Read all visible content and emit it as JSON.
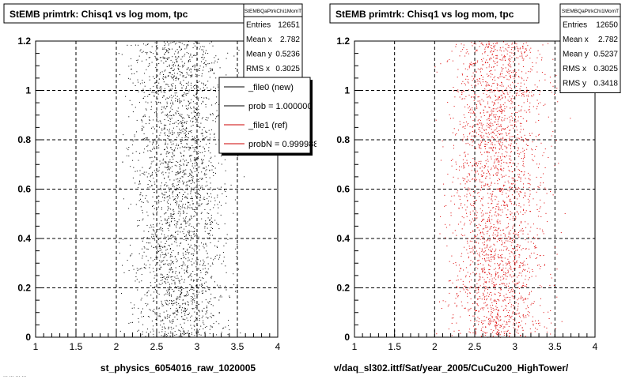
{
  "footer_fragment": "... ... ... ...",
  "chart_data": [
    {
      "type": "scatter",
      "title": "StEMB primtrk: Chisq1 vs log mom, tpc",
      "xlabel": "st_physics_6054016_raw_1020005",
      "ylabel": "",
      "xlim": [
        1,
        4
      ],
      "ylim": [
        0,
        1.2
      ],
      "x_ticks": [
        "1",
        "1.5",
        "2",
        "2.5",
        "3",
        "3.5",
        "4"
      ],
      "y_ticks": [
        "0",
        "0.2",
        "0.4",
        "0.6",
        "0.8",
        "1",
        "1.2"
      ],
      "grid": true,
      "marker_color": "#000000",
      "stats": {
        "name": "StEMBQaPtrkChi1MomT",
        "rows": [
          {
            "label": "Entries",
            "value": "12651"
          },
          {
            "label": "Mean x",
            "value": "2.782"
          },
          {
            "label": "Mean y",
            "value": "0.5236"
          },
          {
            "label": "RMS x",
            "value": "0.3025"
          }
        ]
      },
      "legend": {
        "placement": "top-right",
        "entries": [
          {
            "label": "_file0 (new)",
            "color": "#000000"
          },
          {
            "label": "prob = 1.000000",
            "color": "#000000"
          },
          {
            "label": "_file1 (ref)",
            "color": "#cc0000"
          },
          {
            "label": "probN = 0.999988",
            "color": "#cc0000"
          }
        ]
      },
      "distribution": {
        "entries": 12651,
        "x_mean": 2.782,
        "x_rms": 0.3025,
        "y_mean": 0.5236,
        "x_range": [
          2.0,
          3.75
        ],
        "y_range": [
          0,
          1.2
        ]
      }
    },
    {
      "type": "scatter",
      "title": "StEMB primtrk: Chisq1 vs log mom, tpc",
      "xlabel": "v/daq_sl302.ittf/Sat/year_2005/CuCu200_HighTower/",
      "ylabel": "",
      "xlim": [
        1,
        4
      ],
      "ylim": [
        0,
        1.2
      ],
      "x_ticks": [
        "1",
        "1.5",
        "2",
        "2.5",
        "3",
        "3.5",
        "4"
      ],
      "y_ticks": [
        "0",
        "0.2",
        "0.4",
        "0.6",
        "0.8",
        "1",
        "1.2"
      ],
      "grid": true,
      "marker_color": "#dd0000",
      "stats": {
        "name": "StEMBQaPtrkChi1MomT",
        "rows": [
          {
            "label": "Entries",
            "value": "12650"
          },
          {
            "label": "Mean x",
            "value": "2.782"
          },
          {
            "label": "Mean y",
            "value": "0.5237"
          },
          {
            "label": "RMS x",
            "value": "0.3025"
          },
          {
            "label": "RMS y",
            "value": "0.3418"
          }
        ]
      },
      "legend": null,
      "distribution": {
        "entries": 12650,
        "x_mean": 2.782,
        "x_rms": 0.3025,
        "y_mean": 0.5237,
        "x_range": [
          2.0,
          3.75
        ],
        "y_range": [
          0,
          1.2
        ]
      }
    }
  ]
}
